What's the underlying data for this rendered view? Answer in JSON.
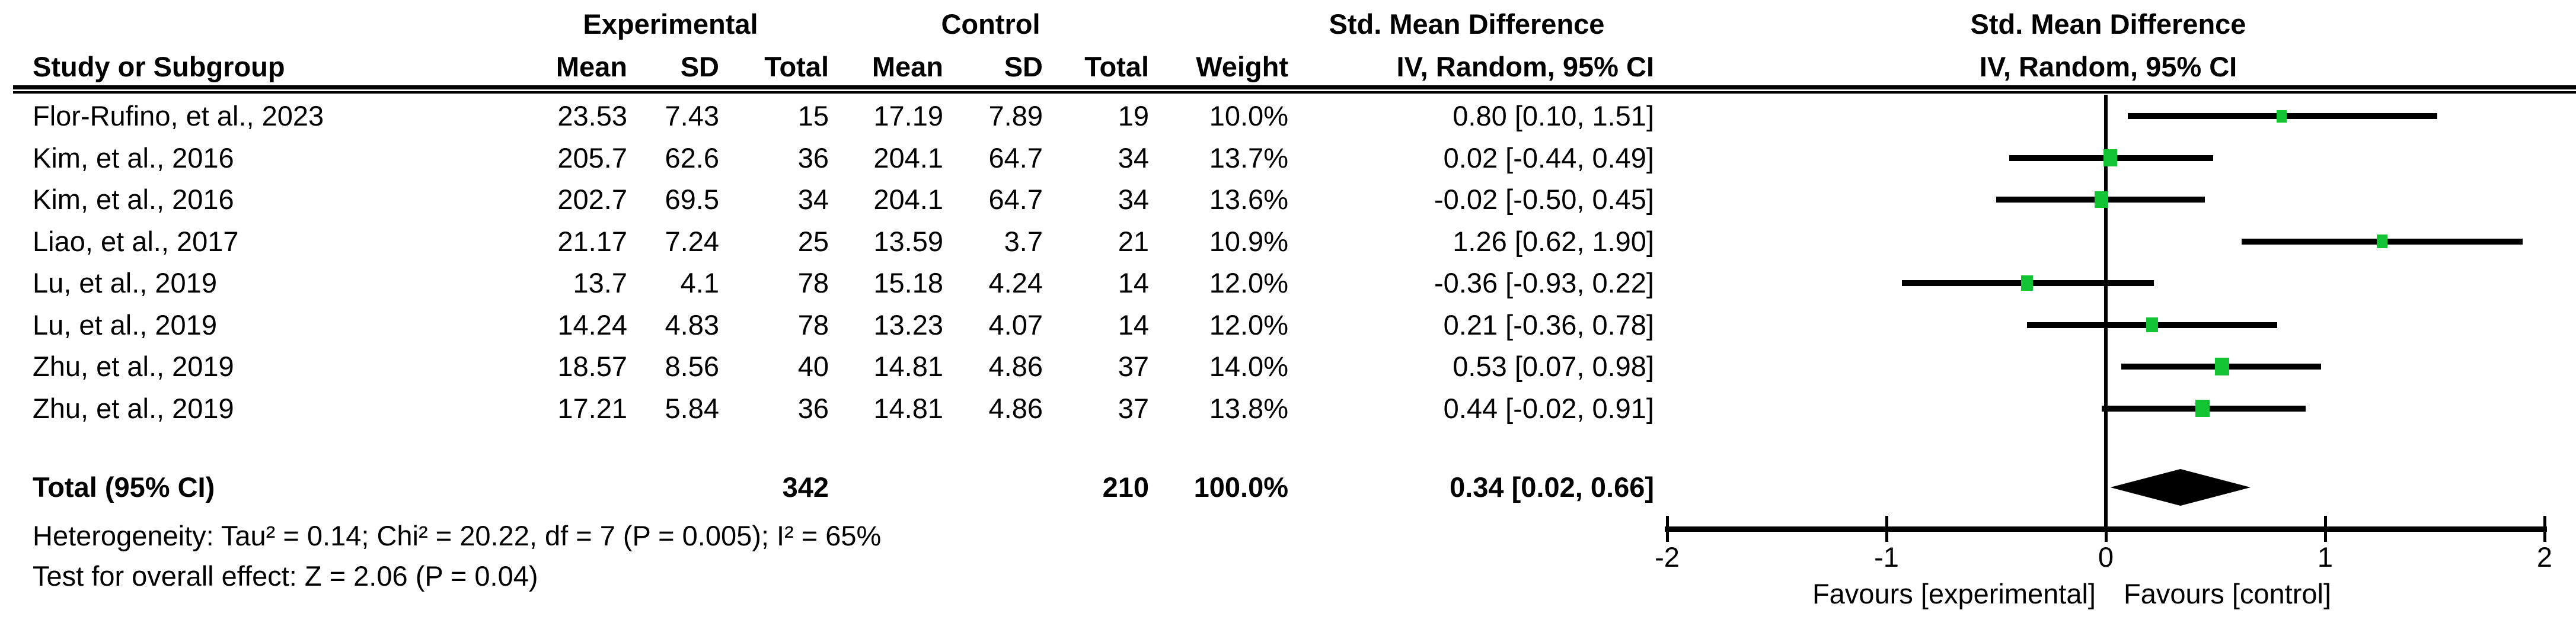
{
  "chart_data": {
    "type": "scatter",
    "subtype": "forest-plot-meta-analysis",
    "effect_measure": "Std. Mean Difference",
    "method": "IV, Random, 95% CI",
    "marker_color": "#12C433",
    "line_color": "#000000",
    "columns": {
      "study": "Study or Subgroup",
      "experimental_group": "Experimental",
      "control_group": "Control",
      "mean": "Mean",
      "sd": "SD",
      "total": "Total",
      "weight": "Weight",
      "effect_title": "Std. Mean Difference",
      "effect_method": "IV, Random, 95% CI"
    },
    "rows": [
      {
        "study": "Flor-Rufino, et al., 2023",
        "mean_e": "23.53",
        "sd_e": "7.43",
        "n_e": "15",
        "mean_c": "17.19",
        "sd_c": "7.89",
        "n_c": "19",
        "weight": "10.0%",
        "weight_pct": 10.0,
        "smd": 0.8,
        "ci_low": 0.1,
        "ci_high": 1.51,
        "ci_text": "0.80 [0.10, 1.51]"
      },
      {
        "study": "Kim, et al., 2016",
        "mean_e": "205.7",
        "sd_e": "62.6",
        "n_e": "36",
        "mean_c": "204.1",
        "sd_c": "64.7",
        "n_c": "34",
        "weight": "13.7%",
        "weight_pct": 13.7,
        "smd": 0.02,
        "ci_low": -0.44,
        "ci_high": 0.49,
        "ci_text": "0.02 [-0.44, 0.49]"
      },
      {
        "study": "Kim, et al., 2016",
        "mean_e": "202.7",
        "sd_e": "69.5",
        "n_e": "34",
        "mean_c": "204.1",
        "sd_c": "64.7",
        "n_c": "34",
        "weight": "13.6%",
        "weight_pct": 13.6,
        "smd": -0.02,
        "ci_low": -0.5,
        "ci_high": 0.45,
        "ci_text": "-0.02 [-0.50, 0.45]"
      },
      {
        "study": "Liao, et al., 2017",
        "mean_e": "21.17",
        "sd_e": "7.24",
        "n_e": "25",
        "mean_c": "13.59",
        "sd_c": "3.7",
        "n_c": "21",
        "weight": "10.9%",
        "weight_pct": 10.9,
        "smd": 1.26,
        "ci_low": 0.62,
        "ci_high": 1.9,
        "ci_text": "1.26 [0.62, 1.90]"
      },
      {
        "study": "Lu, et al., 2019",
        "mean_e": "13.7",
        "sd_e": "4.1",
        "n_e": "78",
        "mean_c": "15.18",
        "sd_c": "4.24",
        "n_c": "14",
        "weight": "12.0%",
        "weight_pct": 12.0,
        "smd": -0.36,
        "ci_low": -0.93,
        "ci_high": 0.22,
        "ci_text": "-0.36 [-0.93, 0.22]"
      },
      {
        "study": "Lu, et al., 2019",
        "mean_e": "14.24",
        "sd_e": "4.83",
        "n_e": "78",
        "mean_c": "13.23",
        "sd_c": "4.07",
        "n_c": "14",
        "weight": "12.0%",
        "weight_pct": 12.0,
        "smd": 0.21,
        "ci_low": -0.36,
        "ci_high": 0.78,
        "ci_text": "0.21 [-0.36, 0.78]"
      },
      {
        "study": "Zhu, et al., 2019",
        "mean_e": "18.57",
        "sd_e": "8.56",
        "n_e": "40",
        "mean_c": "14.81",
        "sd_c": "4.86",
        "n_c": "37",
        "weight": "14.0%",
        "weight_pct": 14.0,
        "smd": 0.53,
        "ci_low": 0.07,
        "ci_high": 0.98,
        "ci_text": "0.53 [0.07, 0.98]"
      },
      {
        "study": "Zhu, et al., 2019",
        "mean_e": "17.21",
        "sd_e": "5.84",
        "n_e": "36",
        "mean_c": "14.81",
        "sd_c": "4.86",
        "n_c": "37",
        "weight": "13.8%",
        "weight_pct": 13.8,
        "smd": 0.44,
        "ci_low": -0.02,
        "ci_high": 0.91,
        "ci_text": "0.44 [-0.02, 0.91]"
      }
    ],
    "total": {
      "label": "Total (95% CI)",
      "n_e": "342",
      "n_c": "210",
      "weight": "100.0%",
      "smd": 0.34,
      "ci_low": 0.02,
      "ci_high": 0.66,
      "ci_text": "0.34 [0.02, 0.66]"
    },
    "footer": {
      "heterogeneity": "Heterogeneity: Tau² = 0.14; Chi² = 20.22, df = 7 (P = 0.005); I² = 65%",
      "overall_effect": "Test for overall effect: Z = 2.06 (P = 0.04)"
    },
    "x_axis": {
      "min": -2,
      "max": 2,
      "ticks": [
        -2,
        -1,
        0,
        1,
        2
      ],
      "favours_left": "Favours [experimental]",
      "favours_right": "Favours [control]",
      "grid": false,
      "scale": "linear"
    }
  }
}
